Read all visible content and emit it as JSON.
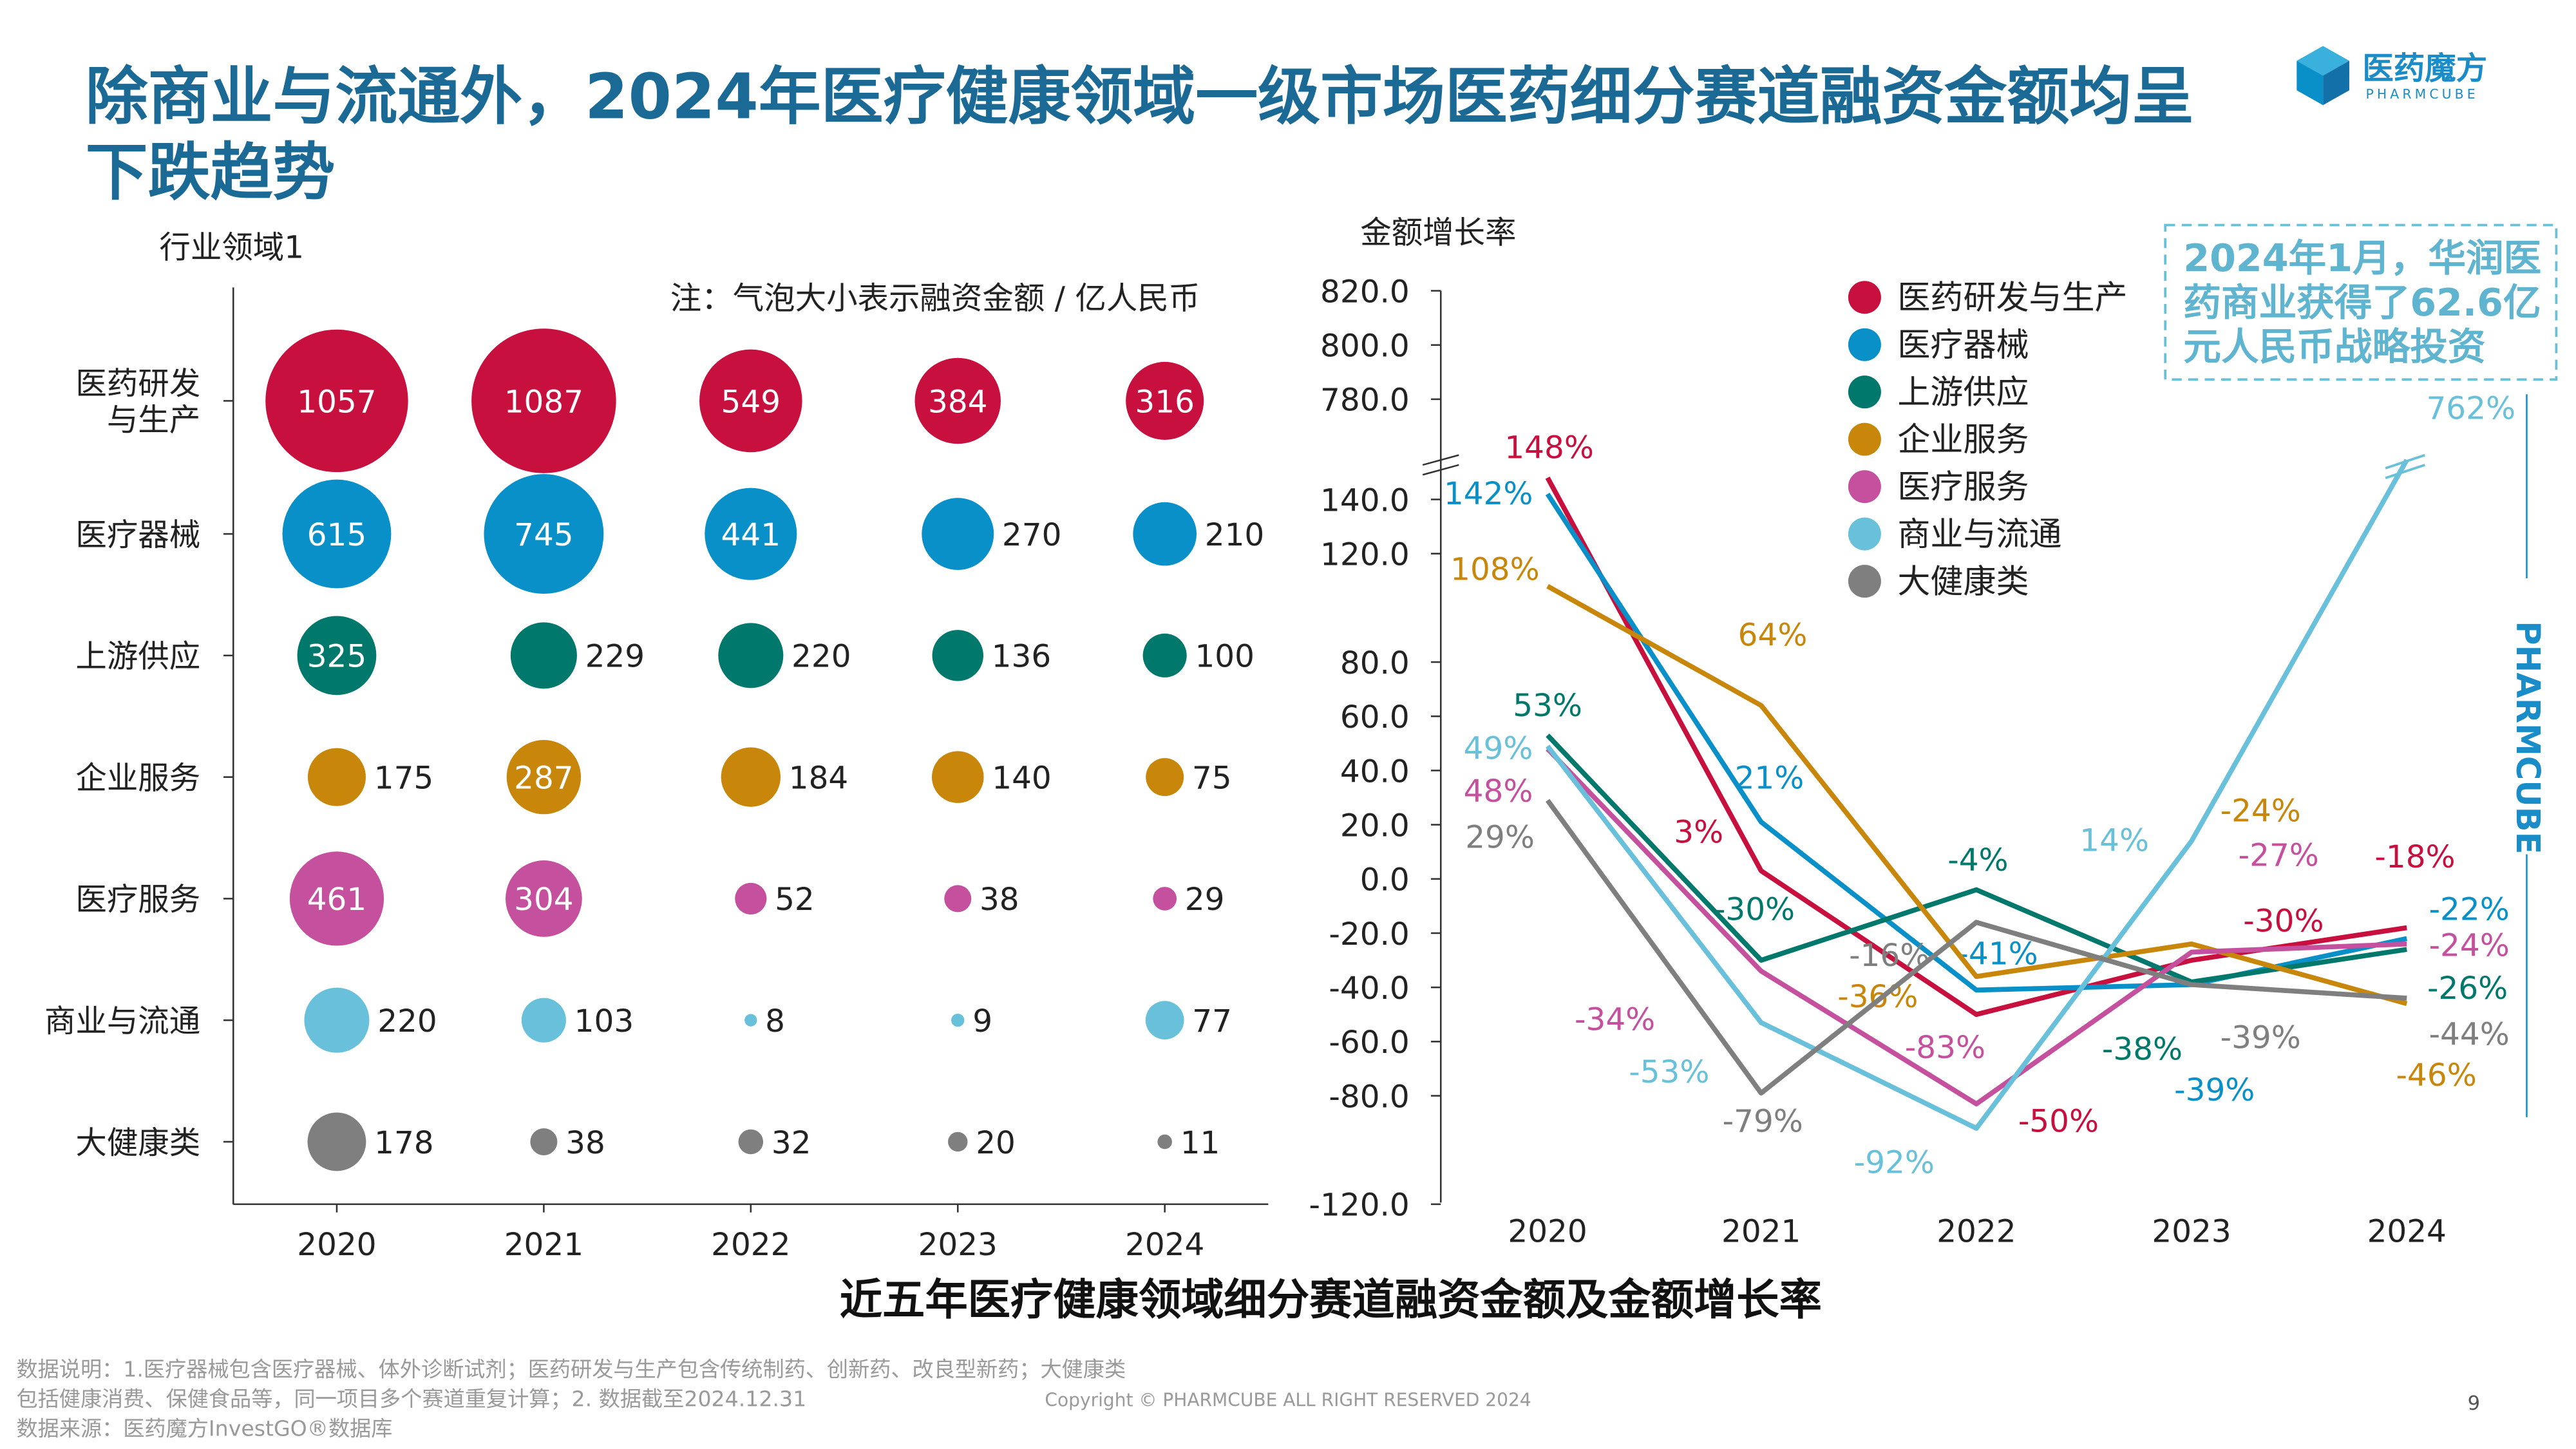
{
  "title_line1": "除商业与流通外，2024年医疗健康领域一级市场医药细分赛道融资金额均呈",
  "title_line2": "下跌趋势",
  "logo": {
    "name": "医药魔方",
    "sub": "PHARMCUBE",
    "icon": "cube-logo-icon"
  },
  "side_brand": "PHARMCUBE",
  "footer": {
    "note_line1": "数据说明：1.医疗器械包含医疗器械、体外诊断试剂；医药研发与生产包含传统制药、创新药、改良型新药；大健康类",
    "note_line2": "包括健康消费、保健食品等，同一项目多个赛道重复计算；2. 数据截至2024.12.31",
    "source": "数据来源：医药魔方InvestGO®数据库",
    "copyright": "Copyright © PHARMCUBE ALL RIGHT RESERVED 2024",
    "page": "9"
  },
  "chart_data": [
    {
      "type": "bubble",
      "ylabel": "行业领域1",
      "note": "注：气泡大小表示融资金额 / 亿人民币",
      "categories": [
        "2020",
        "2021",
        "2022",
        "2023",
        "2024"
      ],
      "rows": [
        {
          "name": "医药研发与生产",
          "label_lines": [
            "医药研发",
            "与生产"
          ],
          "color": "#c8103e",
          "values": [
            1057,
            1087,
            549,
            384,
            316
          ]
        },
        {
          "name": "医疗器械",
          "label_lines": [
            "医疗器械"
          ],
          "color": "#0a90c8",
          "values": [
            615,
            745,
            441,
            270,
            210
          ]
        },
        {
          "name": "上游供应",
          "label_lines": [
            "上游供应"
          ],
          "color": "#00786c",
          "values": [
            325,
            229,
            220,
            136,
            100
          ]
        },
        {
          "name": "企业服务",
          "label_lines": [
            "企业服务"
          ],
          "color": "#c8870a",
          "values": [
            175,
            287,
            184,
            140,
            75
          ]
        },
        {
          "name": "医疗服务",
          "label_lines": [
            "医疗服务"
          ],
          "color": "#c4509e",
          "values": [
            461,
            304,
            52,
            38,
            29
          ]
        },
        {
          "name": "商业与流通",
          "label_lines": [
            "商业与流通"
          ],
          "color": "#68c0da",
          "values": [
            220,
            103,
            8,
            9,
            77
          ]
        },
        {
          "name": "大健康类",
          "label_lines": [
            "大健康类"
          ],
          "color": "#7f7f7f",
          "values": [
            178,
            38,
            32,
            20,
            11
          ]
        }
      ]
    },
    {
      "type": "line",
      "ylabel": "金额增长率",
      "x": [
        "2020",
        "2021",
        "2022",
        "2023",
        "2024"
      ],
      "y_ticks": [
        "820.0",
        "800.0",
        "780.0",
        "140.0",
        "120.0",
        "80.0",
        "60.0",
        "40.0",
        "20.0",
        "0.0",
        "-20.0",
        "-40.0",
        "-60.0",
        "-80.0",
        "-120.0"
      ],
      "y_break": [
        150,
        770
      ],
      "legend_placement": "top-center",
      "series": [
        {
          "name": "医药研发与生产",
          "color": "#c8103e",
          "values": [
            148,
            3,
            -50,
            -30,
            -18
          ],
          "labels": [
            "148%",
            "3%",
            "-50%",
            "-30%",
            "-18%"
          ]
        },
        {
          "name": "医疗器械",
          "color": "#0a90c8",
          "values": [
            142,
            21,
            -41,
            -39,
            -22
          ],
          "labels": [
            "142%",
            "21%",
            "-41%",
            "-39%",
            "-22%"
          ]
        },
        {
          "name": "上游供应",
          "color": "#00786c",
          "values": [
            53,
            -30,
            -4,
            -38,
            -26
          ],
          "labels": [
            "53%",
            "-30%",
            "-4%",
            "-38%",
            "-26%"
          ]
        },
        {
          "name": "企业服务",
          "color": "#c8870a",
          "values": [
            108,
            64,
            -36,
            -24,
            -46
          ],
          "labels": [
            "108%",
            "64%",
            "-36%",
            "-24%",
            "-46%"
          ]
        },
        {
          "name": "医疗服务",
          "color": "#c4509e",
          "values": [
            48,
            -34,
            -83,
            -27,
            -24
          ],
          "labels": [
            "48%",
            "-34%",
            "-83%",
            "-27%",
            "-24%"
          ]
        },
        {
          "name": "商业与流通",
          "color": "#68c0da",
          "values": [
            49,
            -53,
            -92,
            14,
            762
          ],
          "labels": [
            "49%",
            "-53%",
            "-92%",
            "14%",
            "762%"
          ]
        },
        {
          "name": "大健康类",
          "color": "#7f7f7f",
          "values": [
            29,
            -79,
            -16,
            -39,
            -44
          ],
          "labels": [
            "29%",
            "-79%",
            "-16%",
            "-39%",
            "-44%"
          ]
        }
      ],
      "annotation": [
        "2024年1月，华润医",
        "药商业获得了62.6亿",
        "元人民币战略投资"
      ]
    }
  ],
  "chart_title": "近五年医疗健康领域细分赛道融资金额及金额增长率"
}
